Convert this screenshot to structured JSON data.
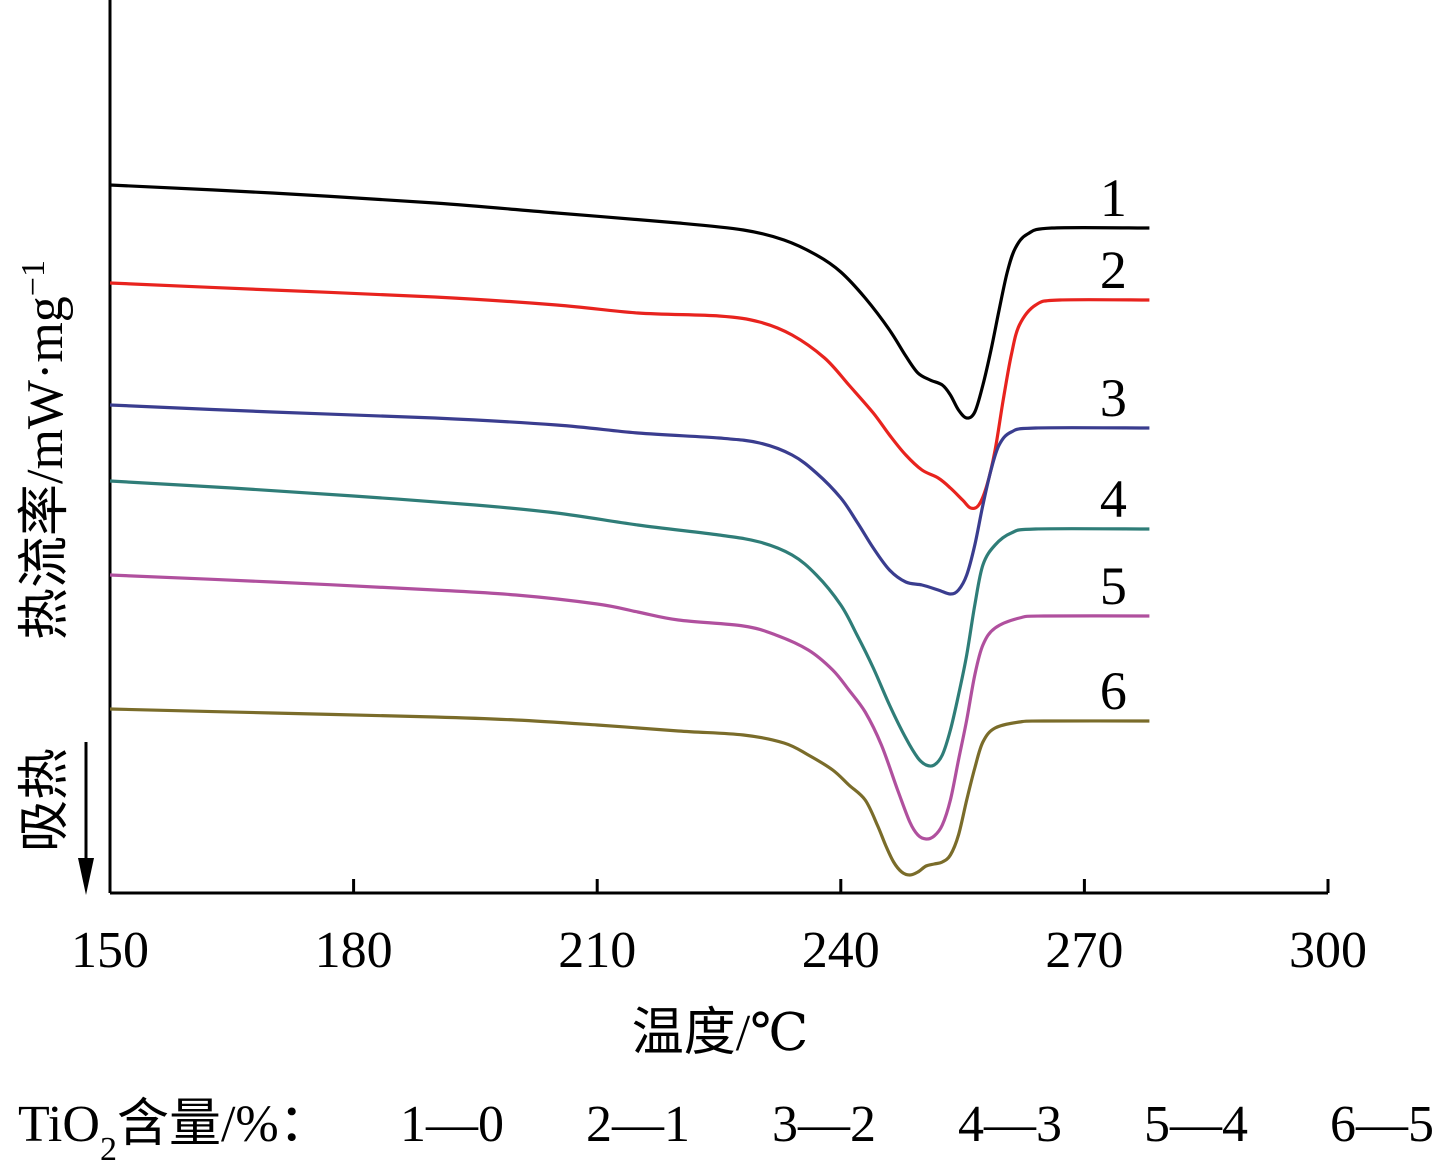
{
  "chart_data": {
    "type": "line",
    "xlabel": "温度/℃",
    "ylabel": "热流率/mW·mg",
    "ylabel_sup": "−1",
    "endo_label": "吸热",
    "x_ticks": [
      150,
      180,
      210,
      240,
      270,
      300
    ],
    "xlim": [
      150,
      300
    ],
    "y_axis_values_shown": false,
    "grid": false,
    "legend": "none",
    "caption": {
      "prefix": "TiO",
      "sub": "2",
      "suffix": "含量/%：",
      "items": [
        "1—0",
        "2—1",
        "3—2",
        "4—3",
        "5—4",
        "6—5"
      ]
    },
    "series": [
      {
        "label": "1",
        "color": "#000000",
        "points": [
          [
            150,
            185
          ],
          [
            170,
            193
          ],
          [
            190,
            203
          ],
          [
            205,
            213
          ],
          [
            220,
            223
          ],
          [
            228,
            230
          ],
          [
            233,
            240
          ],
          [
            237,
            255
          ],
          [
            240,
            272
          ],
          [
            243,
            298
          ],
          [
            246,
            330
          ],
          [
            248,
            356
          ],
          [
            249.5,
            373
          ],
          [
            251,
            380
          ],
          [
            252.5,
            385
          ],
          [
            253.5,
            395
          ],
          [
            254.5,
            410
          ],
          [
            255.5,
            418
          ],
          [
            256.5,
            412
          ],
          [
            257.5,
            385
          ],
          [
            258.5,
            350
          ],
          [
            259.5,
            310
          ],
          [
            260.5,
            272
          ],
          [
            261.5,
            248
          ],
          [
            263,
            234
          ],
          [
            266,
            228
          ],
          [
            278,
            228
          ]
        ]
      },
      {
        "label": "2",
        "color": "#e8231e",
        "points": [
          [
            150,
            283
          ],
          [
            170,
            290
          ],
          [
            190,
            297
          ],
          [
            205,
            305
          ],
          [
            215,
            313
          ],
          [
            225,
            316
          ],
          [
            230,
            322
          ],
          [
            234,
            335
          ],
          [
            238,
            358
          ],
          [
            241,
            385
          ],
          [
            244,
            413
          ],
          [
            246,
            435
          ],
          [
            248,
            455
          ],
          [
            250,
            470
          ],
          [
            252,
            478
          ],
          [
            253.5,
            488
          ],
          [
            255,
            500
          ],
          [
            256,
            508
          ],
          [
            257,
            505
          ],
          [
            258,
            485
          ],
          [
            259,
            450
          ],
          [
            260,
            400
          ],
          [
            261,
            355
          ],
          [
            262,
            325
          ],
          [
            264,
            305
          ],
          [
            267,
            300
          ],
          [
            278,
            300
          ]
        ]
      },
      {
        "label": "3",
        "color": "#3a3d8f",
        "points": [
          [
            150,
            405
          ],
          [
            170,
            412
          ],
          [
            190,
            418
          ],
          [
            205,
            425
          ],
          [
            215,
            433
          ],
          [
            225,
            438
          ],
          [
            230,
            443
          ],
          [
            234,
            455
          ],
          [
            237,
            473
          ],
          [
            240,
            498
          ],
          [
            242,
            522
          ],
          [
            244,
            548
          ],
          [
            246,
            570
          ],
          [
            248,
            582
          ],
          [
            250,
            585
          ],
          [
            252,
            590
          ],
          [
            253.5,
            594
          ],
          [
            254.5,
            590
          ],
          [
            255.5,
            575
          ],
          [
            256.5,
            545
          ],
          [
            257.5,
            505
          ],
          [
            258.5,
            470
          ],
          [
            259.5,
            445
          ],
          [
            261,
            432
          ],
          [
            264,
            428
          ],
          [
            278,
            428
          ]
        ]
      },
      {
        "label": "4",
        "color": "#2f7d78",
        "points": [
          [
            150,
            481
          ],
          [
            165,
            488
          ],
          [
            180,
            496
          ],
          [
            195,
            505
          ],
          [
            205,
            513
          ],
          [
            215,
            525
          ],
          [
            225,
            535
          ],
          [
            230,
            542
          ],
          [
            234,
            555
          ],
          [
            237,
            575
          ],
          [
            240,
            605
          ],
          [
            242,
            635
          ],
          [
            244,
            668
          ],
          [
            246,
            705
          ],
          [
            248,
            738
          ],
          [
            249.5,
            758
          ],
          [
            250.5,
            765
          ],
          [
            251.5,
            765
          ],
          [
            252.5,
            755
          ],
          [
            253.5,
            730
          ],
          [
            254.5,
            695
          ],
          [
            255.5,
            655
          ],
          [
            256.5,
            605
          ],
          [
            257.5,
            565
          ],
          [
            259,
            545
          ],
          [
            261,
            533
          ],
          [
            264,
            529
          ],
          [
            278,
            529
          ]
        ]
      },
      {
        "label": "5",
        "color": "#b0509e",
        "points": [
          [
            150,
            575
          ],
          [
            170,
            582
          ],
          [
            190,
            590
          ],
          [
            200,
            595
          ],
          [
            210,
            604
          ],
          [
            215,
            612
          ],
          [
            220,
            620
          ],
          [
            228,
            626
          ],
          [
            232,
            635
          ],
          [
            236,
            650
          ],
          [
            239,
            670
          ],
          [
            241,
            690
          ],
          [
            243,
            712
          ],
          [
            245,
            745
          ],
          [
            247,
            790
          ],
          [
            248.5,
            822
          ],
          [
            249.5,
            835
          ],
          [
            250.5,
            839
          ],
          [
            251.5,
            836
          ],
          [
            252.5,
            825
          ],
          [
            253.5,
            800
          ],
          [
            254.5,
            760
          ],
          [
            255.5,
            720
          ],
          [
            256.5,
            675
          ],
          [
            257.5,
            645
          ],
          [
            259,
            628
          ],
          [
            262,
            618
          ],
          [
            265,
            616
          ],
          [
            278,
            616
          ]
        ]
      },
      {
        "label": "6",
        "color": "#7a6c2a",
        "points": [
          [
            150,
            709
          ],
          [
            170,
            713
          ],
          [
            190,
            717
          ],
          [
            200,
            720
          ],
          [
            210,
            725
          ],
          [
            220,
            731
          ],
          [
            228,
            735
          ],
          [
            233,
            743
          ],
          [
            236,
            755
          ],
          [
            239,
            770
          ],
          [
            241,
            785
          ],
          [
            243,
            800
          ],
          [
            244.5,
            825
          ],
          [
            245.5,
            845
          ],
          [
            246.5,
            862
          ],
          [
            247.5,
            872
          ],
          [
            248.5,
            875
          ],
          [
            249.5,
            872
          ],
          [
            250.5,
            866
          ],
          [
            251.5,
            864
          ],
          [
            252.5,
            862
          ],
          [
            253.5,
            855
          ],
          [
            254.5,
            835
          ],
          [
            255.5,
            800
          ],
          [
            256.5,
            768
          ],
          [
            257.5,
            742
          ],
          [
            259,
            728
          ],
          [
            262,
            722
          ],
          [
            265,
            721
          ],
          [
            278,
            721
          ]
        ]
      }
    ]
  }
}
